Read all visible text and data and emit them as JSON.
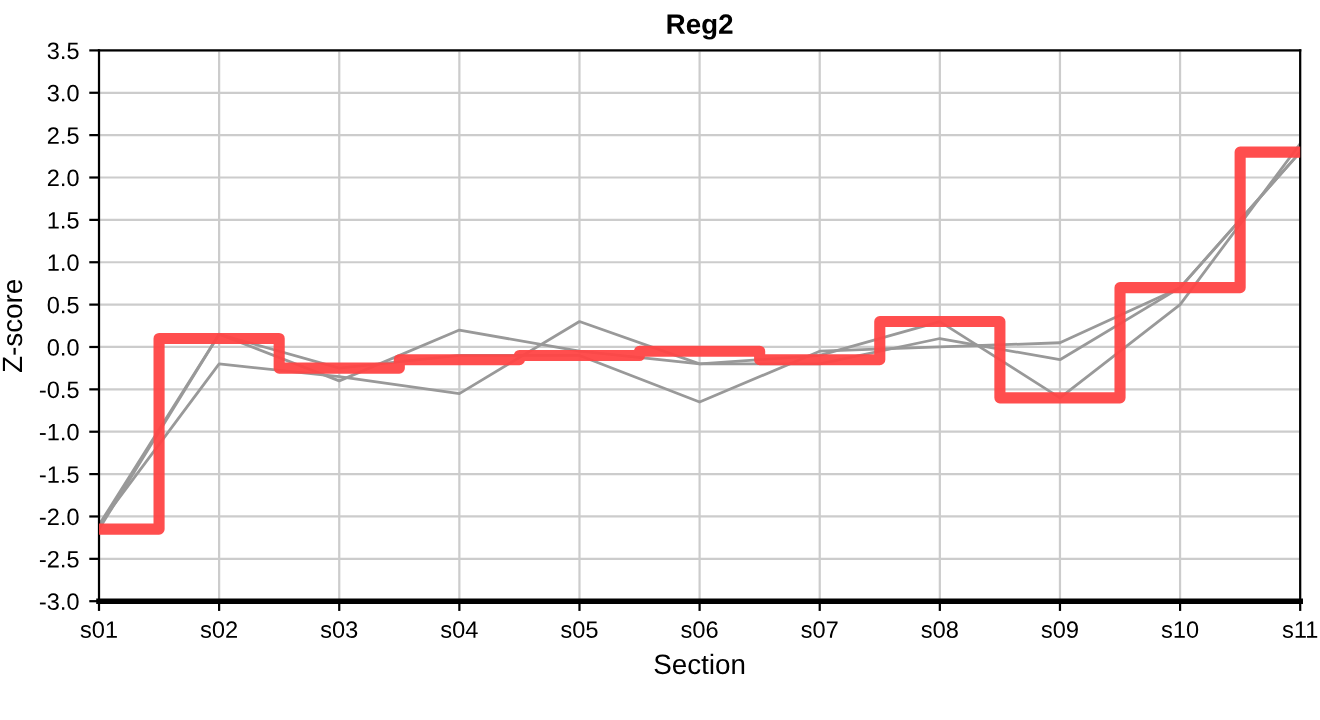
{
  "chart_data": {
    "type": "line",
    "title": "Reg2",
    "xlabel": "Section",
    "ylabel": "Z-score",
    "categories": [
      "s01",
      "s02",
      "s03",
      "s04",
      "s05",
      "s06",
      "s07",
      "s08",
      "s09",
      "s10",
      "s11"
    ],
    "series": [
      {
        "color": "#999999",
        "values": [
          -2.1,
          0.15,
          -0.4,
          0.2,
          -0.05,
          -0.2,
          -0.1,
          0.3,
          -0.6,
          0.5,
          2.4
        ]
      },
      {
        "color": "#999999",
        "values": [
          -2.1,
          -0.2,
          -0.35,
          -0.55,
          0.3,
          -0.2,
          -0.2,
          0.1,
          -0.15,
          0.7,
          2.3
        ]
      },
      {
        "color": "#999999",
        "values": [
          -2.15,
          0.15,
          -0.25,
          -0.1,
          -0.1,
          -0.65,
          -0.05,
          0.0,
          0.05,
          0.7,
          2.3
        ]
      },
      {
        "type": "step",
        "color": "#ff4444",
        "values": [
          -2.15,
          0.1,
          -0.25,
          -0.15,
          -0.1,
          -0.05,
          -0.15,
          0.3,
          -0.6,
          0.7,
          2.3
        ]
      }
    ],
    "ylim": [
      -3.0,
      3.5
    ],
    "yticks": [
      {
        "value": -3.0,
        "label": "-3.0"
      },
      {
        "value": -2.5,
        "label": "-2.5"
      },
      {
        "value": -2.0,
        "label": "-2.0"
      },
      {
        "value": -1.5,
        "label": "-1.5"
      },
      {
        "value": -1.0,
        "label": "-1.0"
      },
      {
        "value": -0.5,
        "label": "-0.5"
      },
      {
        "value": 0.0,
        "label": "0.0"
      },
      {
        "value": 0.5,
        "label": "0.5"
      },
      {
        "value": 1.0,
        "label": "1.0"
      },
      {
        "value": 1.5,
        "label": "1.5"
      },
      {
        "value": 2.0,
        "label": "2.0"
      },
      {
        "value": 2.5,
        "label": "2.5"
      },
      {
        "value": 3.0,
        "label": "3.0"
      },
      {
        "value": 3.5,
        "label": "3.5"
      }
    ],
    "grid": true
  }
}
